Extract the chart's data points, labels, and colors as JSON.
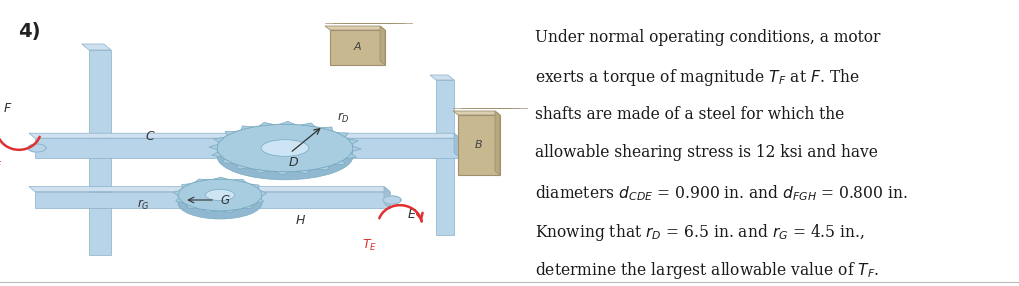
{
  "problem_number": "4)",
  "text_lines_plain": [
    "Under normal operating conditions, a motor",
    "exerts a torque of magnitude ",
    " at ",
    ". The",
    "shafts are made of a steel for which the",
    "allowable shearing stress is 12 ksi and have",
    "diameters ",
    " = 0.900 in. and ",
    " = 0.800 in.",
    "Knowing that ",
    " = 6.5 in. and ",
    " = 4.5 in.,",
    "determine the largest allowable value of "
  ],
  "bg_color": "#ffffff",
  "shaft_color": "#b8d4e8",
  "shaft_dark": "#8ab0c8",
  "gear_color": "#a8cce0",
  "gear_dark": "#7aaac0",
  "wall_color": "#c8b890",
  "wall_dark": "#a09070",
  "red_color": "#e03030",
  "text_color": "#1a1a1a",
  "divider_color": "#bbbbbb",
  "label_color": "#333333"
}
